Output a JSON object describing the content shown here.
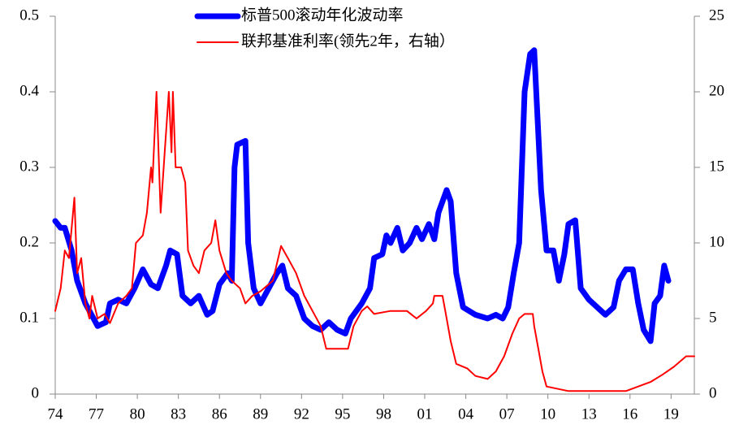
{
  "chart_data": {
    "type": "line",
    "series": [
      {
        "name": "标普500滚动年化波动率",
        "color": "#0000ff",
        "x": [
          1974.0,
          1974.4,
          1974.7,
          1975.2,
          1975.6,
          1976.2,
          1976.8,
          1977.1,
          1977.7,
          1978.0,
          1978.6,
          1979.2,
          1979.8,
          1980.4,
          1981.0,
          1981.5,
          1982.1,
          1982.4,
          1982.9,
          1983.3,
          1983.9,
          1984.5,
          1985.1,
          1985.5,
          1986.0,
          1986.6,
          1986.9,
          1987.1,
          1987.3,
          1987.9,
          1988.1,
          1988.5,
          1989.0,
          1989.6,
          1990.2,
          1990.6,
          1991.0,
          1991.6,
          1992.2,
          1992.8,
          1993.4,
          1994.0,
          1994.6,
          1995.2,
          1995.6,
          1996.4,
          1997.0,
          1997.3,
          1997.9,
          1998.2,
          1998.5,
          1999.0,
          1999.4,
          1999.9,
          2000.4,
          2000.8,
          2001.3,
          2001.7,
          2002.0,
          2002.6,
          2002.9,
          2003.3,
          2003.8,
          2004.7,
          2005.6,
          2006.2,
          2006.7,
          2007.1,
          2007.5,
          2007.9,
          2008.3,
          2008.7,
          2009.0,
          2009.5,
          2009.9,
          2010.4,
          2010.8,
          2011.2,
          2011.5,
          2012.0,
          2012.4,
          2013.0,
          2013.6,
          2014.2,
          2014.8,
          2015.2,
          2015.7,
          2016.2,
          2016.6,
          2017.0,
          2017.5,
          2017.8,
          2018.2,
          2018.5,
          2018.8
        ],
        "values": [
          0.229,
          0.22,
          0.22,
          0.19,
          0.15,
          0.12,
          0.1,
          0.09,
          0.095,
          0.12,
          0.125,
          0.12,
          0.14,
          0.165,
          0.145,
          0.14,
          0.17,
          0.19,
          0.185,
          0.13,
          0.12,
          0.13,
          0.105,
          0.11,
          0.145,
          0.16,
          0.15,
          0.3,
          0.33,
          0.335,
          0.2,
          0.14,
          0.12,
          0.14,
          0.16,
          0.17,
          0.14,
          0.13,
          0.1,
          0.09,
          0.085,
          0.095,
          0.085,
          0.08,
          0.1,
          0.12,
          0.14,
          0.18,
          0.185,
          0.21,
          0.2,
          0.22,
          0.19,
          0.2,
          0.22,
          0.205,
          0.225,
          0.205,
          0.24,
          0.27,
          0.255,
          0.16,
          0.115,
          0.105,
          0.1,
          0.105,
          0.1,
          0.115,
          0.16,
          0.2,
          0.4,
          0.45,
          0.455,
          0.27,
          0.19,
          0.19,
          0.15,
          0.185,
          0.225,
          0.23,
          0.14,
          0.125,
          0.115,
          0.105,
          0.115,
          0.15,
          0.165,
          0.165,
          0.12,
          0.085,
          0.07,
          0.12,
          0.13,
          0.17,
          0.15
        ]
      },
      {
        "name": "联邦基准利率(领先2年，右轴）",
        "color": "#ff0000",
        "axis": "y2",
        "x": [
          1974.0,
          1974.4,
          1974.7,
          1975.0,
          1975.4,
          1975.6,
          1975.9,
          1976.2,
          1976.5,
          1976.7,
          1977.1,
          1977.6,
          1978.0,
          1978.6,
          1979.2,
          1979.6,
          1979.9,
          1980.4,
          1980.7,
          1981.0,
          1981.1,
          1981.4,
          1981.7,
          1982.0,
          1982.3,
          1982.5,
          1982.6,
          1982.8,
          1983.2,
          1983.5,
          1983.7,
          1984.1,
          1984.5,
          1984.9,
          1985.4,
          1985.7,
          1986.0,
          1986.5,
          1986.9,
          1987.5,
          1987.9,
          1988.4,
          1989.0,
          1989.9,
          1990.5,
          1991.0,
          1991.6,
          1992.2,
          1992.8,
          1993.4,
          1993.8,
          1994.6,
          1995.4,
          1995.8,
          1996.4,
          1996.8,
          1997.3,
          1998.5,
          1999.7,
          2000.4,
          2001.1,
          2001.6,
          2001.7,
          2002.3,
          2002.6,
          2002.9,
          2003.3,
          2004.1,
          2004.7,
          2005.6,
          2006.2,
          2006.8,
          2007.4,
          2007.9,
          2008.3,
          2008.9,
          2009.0,
          2009.3,
          2009.6,
          2009.9,
          2011.5,
          2013.9,
          2015.7,
          2016.6,
          2017.5,
          2018.4,
          2019.2,
          2020.1,
          2020.7
        ],
        "values": [
          5.5,
          7,
          9.5,
          9,
          13,
          8,
          9,
          6,
          5,
          6.5,
          5,
          5.3,
          4.7,
          6,
          6.5,
          7,
          10,
          10.5,
          12,
          15,
          14,
          20,
          12,
          16,
          20,
          16,
          20,
          15,
          15,
          14,
          9.5,
          8.5,
          8,
          9.5,
          10,
          11.5,
          9.5,
          8,
          7.5,
          7,
          6,
          6.5,
          6.8,
          7.5,
          9.8,
          9,
          8,
          6.5,
          5.5,
          4.5,
          3,
          3,
          3,
          4.5,
          5.5,
          5.8,
          5.3,
          5.5,
          5.5,
          5,
          5.5,
          6,
          6.5,
          6.5,
          5,
          3.5,
          2,
          1.7,
          1.2,
          1,
          1.5,
          2.5,
          4,
          5,
          5.3,
          5.3,
          4.5,
          3,
          1.5,
          0.5,
          0.2,
          0.2,
          0.2,
          0.5,
          0.8,
          1.3,
          1.8,
          2.5,
          2.5
        ]
      }
    ],
    "xlim": [
      1974,
      2020.7
    ],
    "xticks": [
      {
        "value": 1974,
        "label": "74"
      },
      {
        "value": 1977,
        "label": "77"
      },
      {
        "value": 1980,
        "label": "80"
      },
      {
        "value": 1983,
        "label": "83"
      },
      {
        "value": 1986,
        "label": "86"
      },
      {
        "value": 1989,
        "label": "89"
      },
      {
        "value": 1992,
        "label": "92"
      },
      {
        "value": 1995,
        "label": "95"
      },
      {
        "value": 1998,
        "label": "98"
      },
      {
        "value": 2001,
        "label": "01"
      },
      {
        "value": 2004,
        "label": "04"
      },
      {
        "value": 2007,
        "label": "07"
      },
      {
        "value": 2010,
        "label": "10"
      },
      {
        "value": 2013,
        "label": "13"
      },
      {
        "value": 2016,
        "label": "16"
      },
      {
        "value": 2019,
        "label": "19"
      }
    ],
    "ylim": [
      0,
      0.5
    ],
    "yticks": [
      0,
      0.1,
      0.2,
      0.3,
      0.4,
      0.5
    ],
    "y2lim": [
      0,
      25
    ],
    "y2ticks": [
      0,
      5,
      10,
      15,
      20,
      25
    ]
  }
}
